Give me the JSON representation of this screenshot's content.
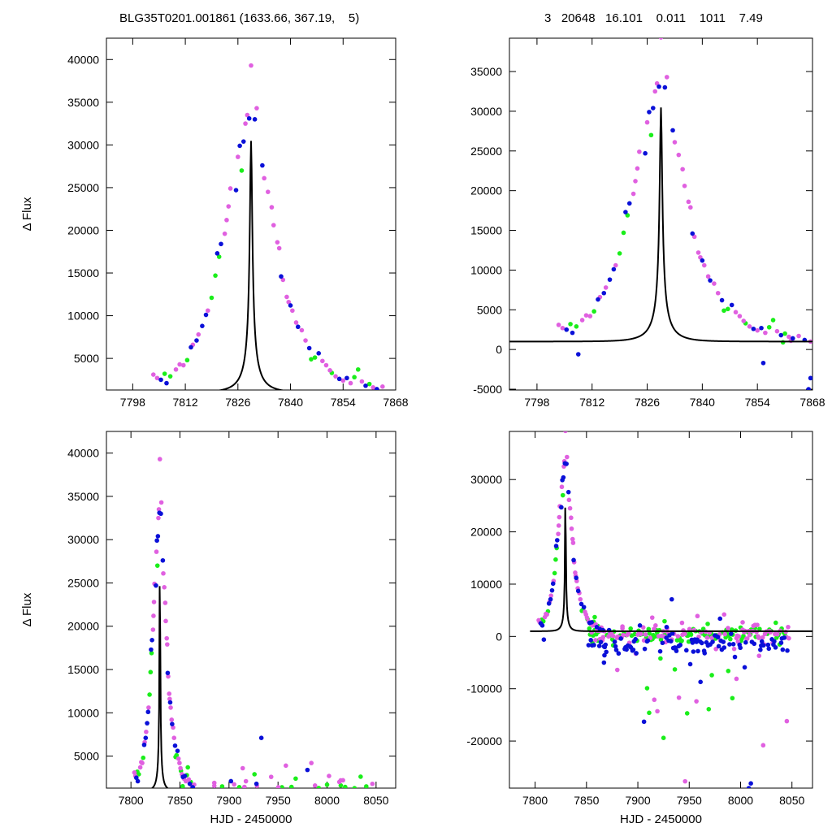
{
  "header": {
    "left": "BLG35T0201.001861 (1633.66, 367.19,    5)",
    "right": "3   20648   16.101    0.011    1011    7.49"
  },
  "colors": {
    "series_1": "#e060e0",
    "series_2": "#0a10d8",
    "series_3": "#1aee1a",
    "model": "#000000",
    "axis": "#000000"
  },
  "chart_data": [
    {
      "type": "scatter",
      "panel": "top-left",
      "xlabel": "",
      "ylabel": "Δ Flux",
      "xlim": [
        7791,
        7868
      ],
      "ylim": [
        1300,
        42500
      ],
      "xticks": [
        7798,
        7812,
        7826,
        7840,
        7854,
        7868
      ],
      "yticks": [
        5000,
        10000,
        15000,
        20000,
        25000,
        30000,
        35000,
        40000
      ],
      "grid": false,
      "model": {
        "t0": 7829.5,
        "u0": 0.05,
        "tE": 6.1,
        "fs": 1550,
        "base": 1000
      }
    },
    {
      "type": "scatter",
      "panel": "top-right",
      "xlabel": "",
      "ylabel": "",
      "xlim": [
        7791,
        7868
      ],
      "ylim": [
        -5100,
        39200
      ],
      "xticks": [
        7798,
        7812,
        7826,
        7840,
        7854,
        7868
      ],
      "yticks": [
        -5000,
        0,
        5000,
        10000,
        15000,
        20000,
        25000,
        30000,
        35000
      ],
      "grid": false,
      "model": {
        "t0": 7829.5,
        "u0": 0.05,
        "tE": 6.1,
        "fs": 1550,
        "base": 1000
      }
    },
    {
      "type": "scatter",
      "panel": "bottom-left",
      "xlabel": "HJD - 2450000",
      "ylabel": "Δ Flux",
      "xlim": [
        7775,
        8070
      ],
      "ylim": [
        1300,
        42500
      ],
      "xticks": [
        7800,
        7850,
        7900,
        7950,
        8000,
        8050
      ],
      "yticks": [
        5000,
        10000,
        15000,
        20000,
        25000,
        30000,
        35000,
        40000
      ],
      "grid": false,
      "model": {
        "t0": 7829.5,
        "u0": 0.05,
        "tE": 6.1,
        "fs": 1550,
        "base": 1000
      }
    },
    {
      "type": "scatter",
      "panel": "bottom-right",
      "xlabel": "HJD - 2450000",
      "ylabel": "",
      "xlim": [
        7775,
        8070
      ],
      "ylim": [
        -29000,
        39200
      ],
      "xticks": [
        7800,
        7850,
        7900,
        7950,
        8000,
        8050
      ],
      "yticks": [
        -20000,
        -10000,
        0,
        10000,
        20000,
        30000
      ],
      "grid": false,
      "model": {
        "t0": 7829.5,
        "u0": 0.05,
        "tE": 6.1,
        "fs": 1550,
        "base": 1000
      }
    }
  ],
  "event_points": [
    {
      "x": 7803.5,
      "y": 3100,
      "s": 0
    },
    {
      "x": 7804.5,
      "y": 2700,
      "s": 0
    },
    {
      "x": 7805.5,
      "y": 2500,
      "s": 1
    },
    {
      "x": 7806.5,
      "y": 3200,
      "s": 2
    },
    {
      "x": 7807.0,
      "y": 2100,
      "s": 1
    },
    {
      "x": 7808.0,
      "y": 2900,
      "s": 2
    },
    {
      "x": 7809.5,
      "y": 3700,
      "s": 0
    },
    {
      "x": 7810.5,
      "y": 4300,
      "s": 0
    },
    {
      "x": 7811.5,
      "y": 4200,
      "s": 0
    },
    {
      "x": 7812.5,
      "y": 4800,
      "s": 2
    },
    {
      "x": 7813.5,
      "y": 6300,
      "s": 1
    },
    {
      "x": 7814.0,
      "y": 6600,
      "s": 0
    },
    {
      "x": 7815.0,
      "y": 7100,
      "s": 1
    },
    {
      "x": 7815.5,
      "y": 7800,
      "s": 0
    },
    {
      "x": 7816.5,
      "y": 8800,
      "s": 1
    },
    {
      "x": 7817.5,
      "y": 10100,
      "s": 1
    },
    {
      "x": 7818.0,
      "y": 10600,
      "s": 0
    },
    {
      "x": 7819.0,
      "y": 12100,
      "s": 2
    },
    {
      "x": 7820.0,
      "y": 14700,
      "s": 2
    },
    {
      "x": 7820.5,
      "y": 17300,
      "s": 1
    },
    {
      "x": 7821.0,
      "y": 16900,
      "s": 2
    },
    {
      "x": 7821.5,
      "y": 18400,
      "s": 1
    },
    {
      "x": 7822.5,
      "y": 19600,
      "s": 0
    },
    {
      "x": 7823.0,
      "y": 21200,
      "s": 0
    },
    {
      "x": 7823.5,
      "y": 22800,
      "s": 0
    },
    {
      "x": 7824.0,
      "y": 24900,
      "s": 0
    },
    {
      "x": 7825.5,
      "y": 24700,
      "s": 1
    },
    {
      "x": 7826.0,
      "y": 28600,
      "s": 0
    },
    {
      "x": 7826.5,
      "y": 29900,
      "s": 1
    },
    {
      "x": 7827.0,
      "y": 27000,
      "s": 2
    },
    {
      "x": 7827.5,
      "y": 30400,
      "s": 1
    },
    {
      "x": 7828.0,
      "y": 32500,
      "s": 0
    },
    {
      "x": 7828.5,
      "y": 33500,
      "s": 0
    },
    {
      "x": 7829.0,
      "y": 33100,
      "s": 1
    },
    {
      "x": 7829.5,
      "y": 39300,
      "s": 0
    },
    {
      "x": 7830.5,
      "y": 33000,
      "s": 1
    },
    {
      "x": 7831.0,
      "y": 34300,
      "s": 0
    },
    {
      "x": 7832.5,
      "y": 27600,
      "s": 1
    },
    {
      "x": 7833.0,
      "y": 26100,
      "s": 0
    },
    {
      "x": 7834.0,
      "y": 24500,
      "s": 0
    },
    {
      "x": 7835.0,
      "y": 22700,
      "s": 0
    },
    {
      "x": 7835.5,
      "y": 20600,
      "s": 0
    },
    {
      "x": 7836.5,
      "y": 18600,
      "s": 0
    },
    {
      "x": 7837.0,
      "y": 17900,
      "s": 0
    },
    {
      "x": 7837.5,
      "y": 14600,
      "s": 1
    },
    {
      "x": 7838.0,
      "y": 14200,
      "s": 0
    },
    {
      "x": 7839.0,
      "y": 12200,
      "s": 0
    },
    {
      "x": 7839.5,
      "y": 11600,
      "s": 0
    },
    {
      "x": 7840.0,
      "y": 11200,
      "s": 1
    },
    {
      "x": 7840.5,
      "y": 10600,
      "s": 0
    },
    {
      "x": 7841.5,
      "y": 9200,
      "s": 0
    },
    {
      "x": 7842.0,
      "y": 8700,
      "s": 1
    },
    {
      "x": 7843.0,
      "y": 8300,
      "s": 0
    },
    {
      "x": 7844.0,
      "y": 7100,
      "s": 0
    },
    {
      "x": 7845.0,
      "y": 6200,
      "s": 1
    },
    {
      "x": 7845.5,
      "y": 4900,
      "s": 2
    },
    {
      "x": 7846.5,
      "y": 5100,
      "s": 2
    },
    {
      "x": 7847.5,
      "y": 5600,
      "s": 1
    },
    {
      "x": 7848.5,
      "y": 4700,
      "s": 0
    },
    {
      "x": 7849.5,
      "y": 4200,
      "s": 0
    },
    {
      "x": 7850.5,
      "y": 3600,
      "s": 0
    },
    {
      "x": 7851.0,
      "y": 3300,
      "s": 2
    },
    {
      "x": 7852.0,
      "y": 2900,
      "s": 0
    },
    {
      "x": 7853.0,
      "y": 2600,
      "s": 1
    },
    {
      "x": 7854.0,
      "y": 2400,
      "s": 0
    },
    {
      "x": 7855.0,
      "y": 2700,
      "s": 1
    },
    {
      "x": 7856.0,
      "y": 2100,
      "s": 0
    },
    {
      "x": 7857.0,
      "y": 2800,
      "s": 2
    },
    {
      "x": 7858.0,
      "y": 3700,
      "s": 2
    },
    {
      "x": 7859.0,
      "y": 2300,
      "s": 0
    },
    {
      "x": 7860.0,
      "y": 1800,
      "s": 1
    },
    {
      "x": 7861.0,
      "y": 2000,
      "s": 2
    },
    {
      "x": 7862.0,
      "y": 1600,
      "s": 0
    },
    {
      "x": 7863.0,
      "y": 1400,
      "s": 1
    },
    {
      "x": 7864.5,
      "y": 1700,
      "s": 0
    },
    {
      "x": 7866.0,
      "y": 1200,
      "s": 1
    },
    {
      "x": 7867.5,
      "y": 1000,
      "s": 0
    },
    {
      "x": 7808.5,
      "y": -600,
      "s": 1
    },
    {
      "x": 7855.5,
      "y": -1700,
      "s": 1
    },
    {
      "x": 7867.5,
      "y": -3600,
      "s": 1
    },
    {
      "x": 7867.0,
      "y": -5000,
      "s": 1
    },
    {
      "x": 7862.5,
      "y": 1100,
      "s": 0
    },
    {
      "x": 7860.5,
      "y": 900,
      "s": 2
    }
  ],
  "baseline_points": [
    {
      "x": 7872,
      "y": 1200,
      "s": 1
    },
    {
      "x": 7876,
      "y": -1700,
      "s": 2
    },
    {
      "x": 7880,
      "y": -6400,
      "s": 0
    },
    {
      "x": 7885,
      "y": 1900,
      "s": 0
    },
    {
      "x": 7889,
      "y": -2500,
      "s": 1
    },
    {
      "x": 7893,
      "y": 1500,
      "s": 2
    },
    {
      "x": 7898,
      "y": -3300,
      "s": 0
    },
    {
      "x": 7902,
      "y": 2100,
      "s": 1
    },
    {
      "x": 7906,
      "y": -16300,
      "s": 1
    },
    {
      "x": 7909,
      "y": -9900,
      "s": 2
    },
    {
      "x": 7911,
      "y": -14600,
      "s": 2
    },
    {
      "x": 7914,
      "y": 3600,
      "s": 0
    },
    {
      "x": 7916,
      "y": -12100,
      "s": 0
    },
    {
      "x": 7919,
      "y": -14300,
      "s": 0
    },
    {
      "x": 7922,
      "y": -4200,
      "s": 2
    },
    {
      "x": 7925,
      "y": -19400,
      "s": 2
    },
    {
      "x": 7928,
      "y": 1800,
      "s": 1
    },
    {
      "x": 7933,
      "y": 7100,
      "s": 1
    },
    {
      "x": 7936,
      "y": -6300,
      "s": 2
    },
    {
      "x": 7940,
      "y": -11700,
      "s": 0
    },
    {
      "x": 7943,
      "y": 2600,
      "s": 0
    },
    {
      "x": 7946,
      "y": -27700,
      "s": 0
    },
    {
      "x": 7948,
      "y": -14700,
      "s": 2
    },
    {
      "x": 7951,
      "y": -5300,
      "s": 1
    },
    {
      "x": 7954,
      "y": 1400,
      "s": 2
    },
    {
      "x": 7957,
      "y": -12400,
      "s": 0
    },
    {
      "x": 7961,
      "y": -8700,
      "s": 1
    },
    {
      "x": 7965,
      "y": -3200,
      "s": 1
    },
    {
      "x": 7969,
      "y": -13900,
      "s": 2
    },
    {
      "x": 7972,
      "y": -7400,
      "s": 2
    },
    {
      "x": 7976,
      "y": -2400,
      "s": 0
    },
    {
      "x": 7980,
      "y": 3400,
      "s": 1
    },
    {
      "x": 7984,
      "y": 4200,
      "s": 0
    },
    {
      "x": 7988,
      "y": -6600,
      "s": 2
    },
    {
      "x": 7992,
      "y": -11800,
      "s": 2
    },
    {
      "x": 7996,
      "y": -8100,
      "s": 0
    },
    {
      "x": 8000,
      "y": 1700,
      "s": 2
    },
    {
      "x": 8004,
      "y": -5900,
      "s": 1
    },
    {
      "x": 8008,
      "y": -29000,
      "s": 1
    },
    {
      "x": 8010,
      "y": -28100,
      "s": 1
    },
    {
      "x": 8014,
      "y": 2200,
      "s": 0
    },
    {
      "x": 8018,
      "y": -3700,
      "s": 0
    },
    {
      "x": 8022,
      "y": -20800,
      "s": 0
    },
    {
      "x": 8028,
      "y": 1300,
      "s": 2
    },
    {
      "x": 8034,
      "y": -2100,
      "s": 1
    },
    {
      "x": 8040,
      "y": 1500,
      "s": 2
    },
    {
      "x": 8045,
      "y": -16200,
      "s": 0
    },
    {
      "x": 7958,
      "y": 3900,
      "s": 0
    },
    {
      "x": 7926,
      "y": 2900,
      "s": 2
    },
    {
      "x": 7968,
      "y": 2400,
      "s": 2
    },
    {
      "x": 8002,
      "y": 2700,
      "s": 0
    }
  ]
}
